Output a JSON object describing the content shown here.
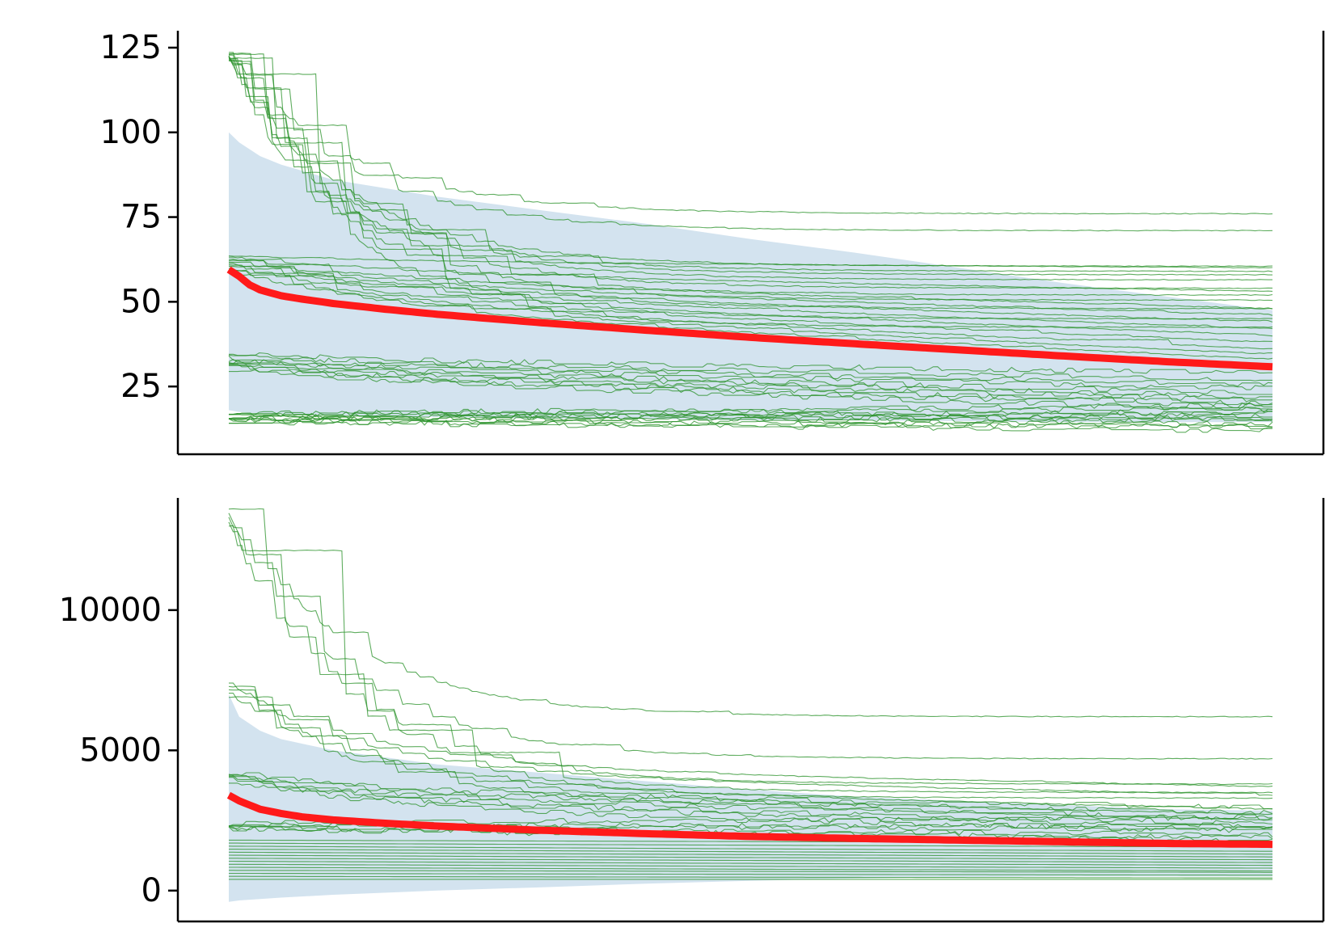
{
  "colors": {
    "mean_line": "#ff1a1a",
    "run_lines": "#2a922a",
    "band_fill": "#d3e3ef",
    "axes": "#000000"
  },
  "chart_data": [
    {
      "type": "line",
      "title": "",
      "xlabel": "",
      "ylabel": "",
      "xlim": [
        0,
        100
      ],
      "ylim": [
        5,
        130
      ],
      "yticks": [
        25,
        50,
        75,
        100,
        125
      ],
      "x_ticks_visible": false,
      "spines": [
        "left",
        "bottom",
        "right"
      ],
      "mean_series": {
        "x": [
          0,
          1,
          2,
          3,
          5,
          7,
          10,
          15,
          20,
          30,
          40,
          50,
          60,
          70,
          80,
          90,
          100
        ],
        "values": [
          59.5,
          57.5,
          55,
          53.5,
          51.8,
          50.8,
          49.5,
          47.8,
          46.3,
          43.8,
          41.6,
          39.5,
          37.6,
          35.8,
          34,
          32.3,
          30.8
        ]
      },
      "band": {
        "x": [
          0,
          1,
          3,
          5,
          10,
          20,
          30,
          40,
          50,
          60,
          70,
          80,
          90,
          100
        ],
        "upper": [
          100,
          97,
          93,
          90.5,
          86,
          81,
          77,
          73,
          68.5,
          64.5,
          60,
          55.5,
          51.5,
          47.5
        ],
        "lower": [
          18,
          17.5,
          17,
          16.8,
          16.5,
          16,
          15.5,
          15.5,
          15,
          15,
          14.8,
          14.5,
          14.5,
          14.5
        ]
      },
      "run_groups": [
        {
          "count": 12,
          "start_min": 121,
          "start_max": 123.5,
          "end_values": [
            76,
            71,
            60.5,
            59,
            58,
            56.5,
            54,
            52,
            50.5,
            48,
            45,
            42.5
          ],
          "curvature": 1.0,
          "step_style": "stairs"
        },
        {
          "count": 11,
          "start_min": 59,
          "start_max": 63.5,
          "end_values": [
            60,
            53,
            48,
            46,
            44,
            42,
            40,
            38,
            36,
            34.5,
            33
          ],
          "curvature": 0.45,
          "step_style": "stairs"
        },
        {
          "count": 10,
          "start_min": 30,
          "start_max": 34.5,
          "end_values": [
            29,
            27,
            25.5,
            24.5,
            23,
            22,
            21,
            20,
            19,
            18
          ],
          "curvature": 0.3,
          "step_style": "noisy"
        },
        {
          "count": 12,
          "start_min": 14.5,
          "start_max": 17,
          "end_values": [
            19.5,
            18.5,
            17.5,
            17,
            16.5,
            16,
            15.5,
            15,
            14,
            13.5,
            13,
            12
          ],
          "curvature": 0.1,
          "step_style": "noisy"
        }
      ]
    },
    {
      "type": "line",
      "title": "",
      "xlabel": "",
      "ylabel": "",
      "xlim": [
        0,
        100
      ],
      "ylim": [
        -1100,
        14000
      ],
      "yticks": [
        0,
        5000,
        10000
      ],
      "x_ticks_visible": false,
      "spines": [
        "left",
        "bottom",
        "right"
      ],
      "mean_series": {
        "x": [
          0,
          1,
          2,
          3,
          5,
          7,
          10,
          15,
          20,
          30,
          40,
          50,
          60,
          70,
          80,
          90,
          100
        ],
        "values": [
          3400,
          3200,
          3050,
          2900,
          2750,
          2630,
          2520,
          2400,
          2300,
          2150,
          2030,
          1930,
          1860,
          1800,
          1740,
          1680,
          1650
        ]
      },
      "band": {
        "x": [
          0,
          1,
          3,
          5,
          10,
          20,
          30,
          40,
          50,
          60,
          70,
          80,
          90,
          100
        ],
        "upper": [
          7000,
          6200,
          5700,
          5400,
          5000,
          4500,
          4200,
          3900,
          3600,
          3350,
          3200,
          3050,
          2900,
          2850
        ],
        "lower": [
          -400,
          -350,
          -300,
          -250,
          -150,
          0,
          120,
          250,
          350,
          430,
          480,
          500,
          500,
          500
        ]
      },
      "run_groups": [
        {
          "count": 5,
          "start_min": 13000,
          "start_max": 13600,
          "end_values": [
            6200,
            4700,
            3800,
            3500,
            3300
          ],
          "curvature": 1.0,
          "step_style": "stairs"
        },
        {
          "count": 5,
          "start_min": 6900,
          "start_max": 7400,
          "end_values": [
            3700,
            3400,
            2900,
            2700,
            2500
          ],
          "curvature": 0.8,
          "step_style": "stairs"
        },
        {
          "count": 6,
          "start_min": 3900,
          "start_max": 4200,
          "end_values": [
            2950,
            2800,
            2600,
            2400,
            2300,
            2100
          ],
          "curvature": 0.55,
          "step_style": "noisy"
        },
        {
          "count": 6,
          "start_min": 2200,
          "start_max": 2400,
          "end_values": [
            2600,
            2300,
            2200,
            2000,
            1900,
            1800
          ],
          "curvature": 0.2,
          "step_style": "noisy"
        },
        {
          "count": 14,
          "start_min": 400,
          "start_max": 1800,
          "end_values": [
            1700,
            1550,
            1400,
            1300,
            1200,
            1100,
            1000,
            900,
            800,
            700,
            650,
            550,
            450,
            400
          ],
          "curvature": 0.05,
          "step_style": "flat"
        }
      ]
    }
  ]
}
